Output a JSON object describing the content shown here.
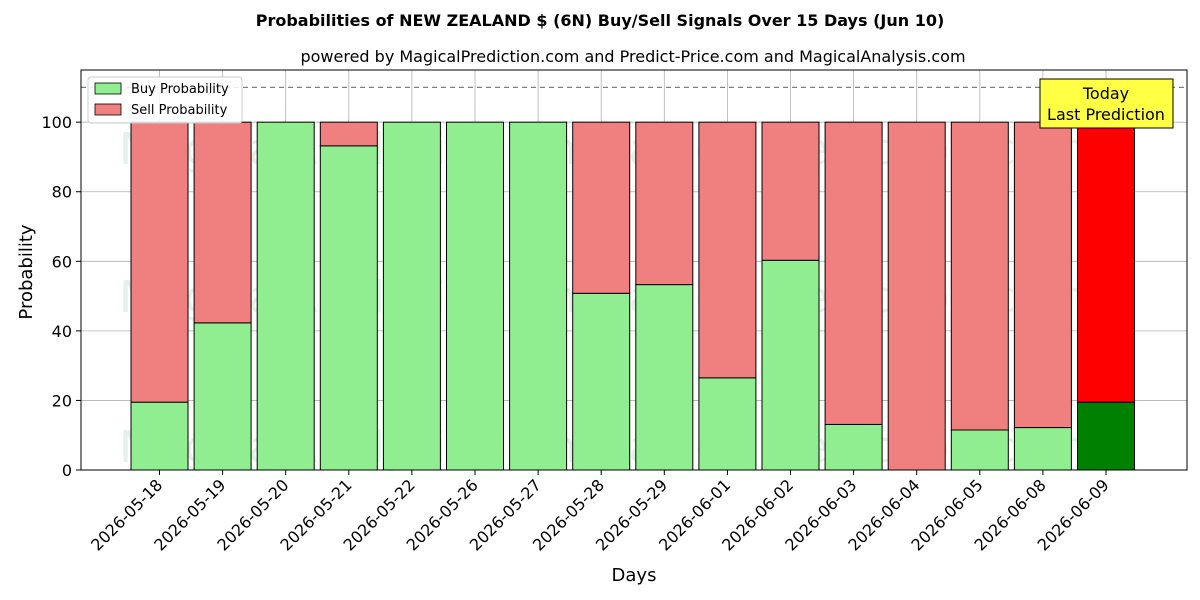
{
  "chart_data": {
    "type": "bar",
    "stacked": true,
    "title": "Probabilities of NEW ZEALAND $ (6N) Buy/Sell Signals Over 15 Days (Jun 10)",
    "subtitle": "powered by MagicalPrediction.com and Predict-Price.com and MagicalAnalysis.com",
    "xlabel": "Days",
    "ylabel": "Probability",
    "ylim": [
      0,
      115
    ],
    "yticks": [
      0,
      20,
      40,
      60,
      80,
      100
    ],
    "grid": true,
    "reference_line": 110,
    "legend_position": "top-left",
    "categories": [
      "2026-05-18",
      "2026-05-19",
      "2026-05-20",
      "2026-05-21",
      "2026-05-22",
      "2026-05-26",
      "2026-05-27",
      "2026-05-28",
      "2026-05-29",
      "2026-06-01",
      "2026-06-02",
      "2026-06-03",
      "2026-06-04",
      "2026-06-05",
      "2026-06-08",
      "2026-06-09"
    ],
    "series": [
      {
        "name": "Buy Probability",
        "color": "#90ee90",
        "values": [
          19.5,
          42.3,
          100,
          93.2,
          100,
          100,
          100,
          50.8,
          53.3,
          26.5,
          60.3,
          13.1,
          0,
          11.5,
          12.2,
          19.5
        ]
      },
      {
        "name": "Sell Probability",
        "color": "#f08080",
        "values": [
          80.5,
          57.7,
          0,
          6.8,
          0,
          0,
          0,
          49.2,
          46.7,
          73.5,
          39.7,
          86.9,
          100,
          88.5,
          87.8,
          80.5
        ]
      }
    ],
    "highlight": {
      "index": 15,
      "buy_color": "#008000",
      "sell_color": "#ff0000"
    },
    "annotation": {
      "line1": "Today",
      "line2": "Last Prediction",
      "color": "#ffff44"
    },
    "watermarks": [
      "MagicalAnalysis.com",
      "MagicalPrediction.com"
    ]
  }
}
